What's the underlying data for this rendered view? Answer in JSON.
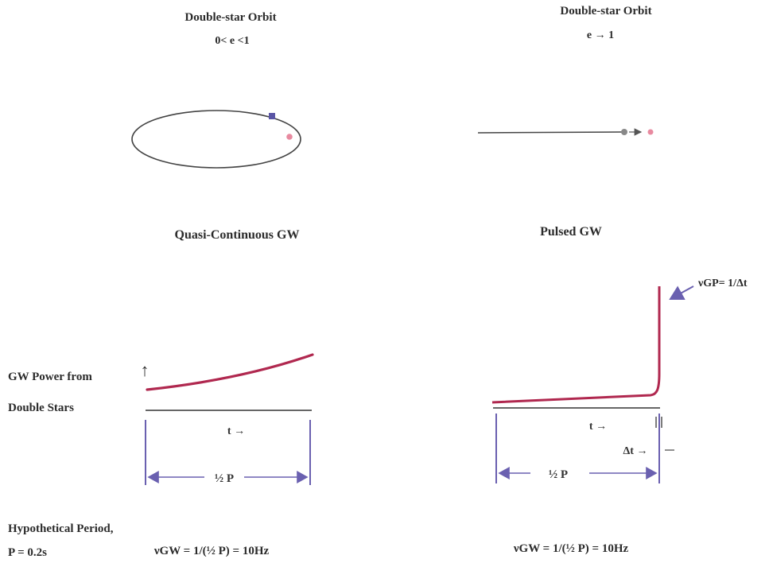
{
  "panels": {
    "orbit_elliptical": {
      "title": "Double-star Orbit",
      "subtitle": "0< e <1"
    },
    "orbit_linear": {
      "title": "Double-star Orbit",
      "subtitle": "e → 1",
      "arrow": "→"
    },
    "quasi_continuous": {
      "title": "Quasi-Continuous GW",
      "time_label": "t →",
      "period_label": "½ P",
      "frequency": "νGW = 1/(½ P) = 10Hz"
    },
    "pulsed": {
      "title": "Pulsed GW",
      "time_label": "t →",
      "period_label": "½ P",
      "delta_label": "Δt →",
      "pulse_frequency": "νGP= 1/Δt",
      "frequency": "νGW = 1/(½ P) = 10Hz"
    }
  },
  "axis": {
    "ylabel_line1": "GW Power from",
    "ylabel_line2": "Double Stars",
    "up_arrow": "↑"
  },
  "footer": {
    "line1": "Hypothetical Period,",
    "line2": "P = 0.2s"
  },
  "colors": {
    "star_primary": "#5a55a5",
    "star_secondary": "#e88aa0",
    "curve": "#b0284f",
    "annotation": "#6a60b0",
    "ink": "#444444"
  }
}
